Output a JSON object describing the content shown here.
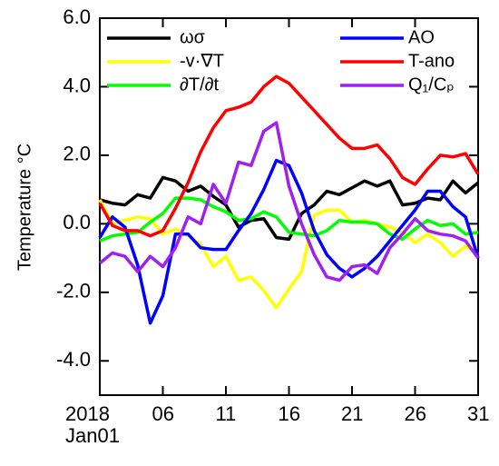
{
  "chart_data": {
    "type": "line",
    "ylabel": "Temperature °C",
    "x": [
      1,
      2,
      3,
      4,
      5,
      6,
      7,
      8,
      9,
      10,
      11,
      12,
      13,
      14,
      15,
      16,
      17,
      18,
      19,
      20,
      21,
      22,
      23,
      24,
      25,
      26,
      27,
      28,
      29,
      30,
      31
    ],
    "xlim": [
      1,
      31
    ],
    "xticks": [
      {
        "value": 1,
        "label": "2018\nJan01"
      },
      {
        "value": 6,
        "label": "06"
      },
      {
        "value": 11,
        "label": "11"
      },
      {
        "value": 16,
        "label": "16"
      },
      {
        "value": 21,
        "label": "21"
      },
      {
        "value": 26,
        "label": "26"
      },
      {
        "value": 31,
        "label": "31"
      }
    ],
    "ylim": [
      -5,
      6
    ],
    "yticks": [
      {
        "value": -4,
        "label": "-4.0"
      },
      {
        "value": -2,
        "label": "-2.0"
      },
      {
        "value": 0,
        "label": "0.0"
      },
      {
        "value": 2,
        "label": "2.0"
      },
      {
        "value": 4,
        "label": "4.0"
      },
      {
        "value": 6,
        "label": "6.0"
      }
    ],
    "series": [
      {
        "name": "ωσ",
        "color": "#000000",
        "values": [
          0.7,
          0.6,
          0.55,
          0.85,
          0.75,
          1.35,
          1.25,
          0.95,
          1.1,
          0.8,
          0.55,
          -0.1,
          0.1,
          0.15,
          -0.4,
          -0.45,
          0.3,
          0.55,
          0.95,
          0.85,
          1.05,
          1.25,
          1.1,
          1.25,
          0.55,
          0.6,
          0.75,
          0.7,
          1.25,
          0.9,
          1.2
        ]
      },
      {
        "name": "-v·∇T",
        "color": "#ffff00",
        "values": [
          0.7,
          0.0,
          0.1,
          0.2,
          0.15,
          -0.3,
          -0.15,
          -0.35,
          -0.6,
          -1.25,
          -0.95,
          -1.65,
          -1.55,
          -1.95,
          -2.45,
          -1.9,
          -1.4,
          0.25,
          0.4,
          0.4,
          0.05,
          0.1,
          0.0,
          -0.1,
          -0.25,
          -0.55,
          -0.3,
          -0.55,
          -0.95,
          -0.65,
          -0.9
        ]
      },
      {
        "name": "∂T/∂t",
        "color": "#00ff00",
        "values": [
          -0.5,
          -0.35,
          -0.3,
          -0.25,
          0.05,
          0.3,
          0.75,
          0.75,
          0.7,
          0.5,
          0.35,
          0.1,
          0.15,
          0.35,
          0.2,
          -0.25,
          -0.3,
          -0.35,
          -0.2,
          0.1,
          0.05,
          0.05,
          0.0,
          -0.3,
          -0.45,
          -0.15,
          0.1,
          -0.05,
          0.0,
          -0.3,
          -0.25
        ]
      },
      {
        "name": "AO",
        "color": "#0000ff",
        "values": [
          -0.4,
          0.2,
          -0.1,
          -1.2,
          -2.9,
          -2.1,
          -0.3,
          -0.3,
          -0.7,
          -0.75,
          -0.75,
          -0.2,
          0.3,
          1.0,
          1.85,
          1.7,
          0.9,
          -0.2,
          -0.9,
          -1.3,
          -1.55,
          -1.3,
          -0.95,
          -0.5,
          -0.05,
          0.4,
          0.95,
          0.95,
          0.5,
          0.2,
          -1.0
        ]
      },
      {
        "name": "T-ano",
        "color": "#ff0000",
        "values": [
          0.6,
          -0.05,
          -0.2,
          -0.2,
          -0.35,
          -0.2,
          0.45,
          1.2,
          2.1,
          2.8,
          3.3,
          3.4,
          3.55,
          4.0,
          4.3,
          4.1,
          3.7,
          3.3,
          2.9,
          2.5,
          2.2,
          2.2,
          2.3,
          1.9,
          1.35,
          1.15,
          1.6,
          2.0,
          1.95,
          2.05,
          1.45
        ]
      },
      {
        "name": "Q₁/Cₚ",
        "color": "#a020f0",
        "values": [
          -1.15,
          -0.85,
          -0.95,
          -1.4,
          -0.95,
          -1.25,
          -0.7,
          0.2,
          0.0,
          1.15,
          0.6,
          1.8,
          1.7,
          2.7,
          2.95,
          1.1,
          0.0,
          -0.9,
          -1.55,
          -1.65,
          -1.25,
          -1.2,
          -1.45,
          -0.7,
          -0.3,
          0.15,
          -0.2,
          -0.3,
          -0.35,
          -0.5,
          -1.0
        ]
      }
    ]
  }
}
